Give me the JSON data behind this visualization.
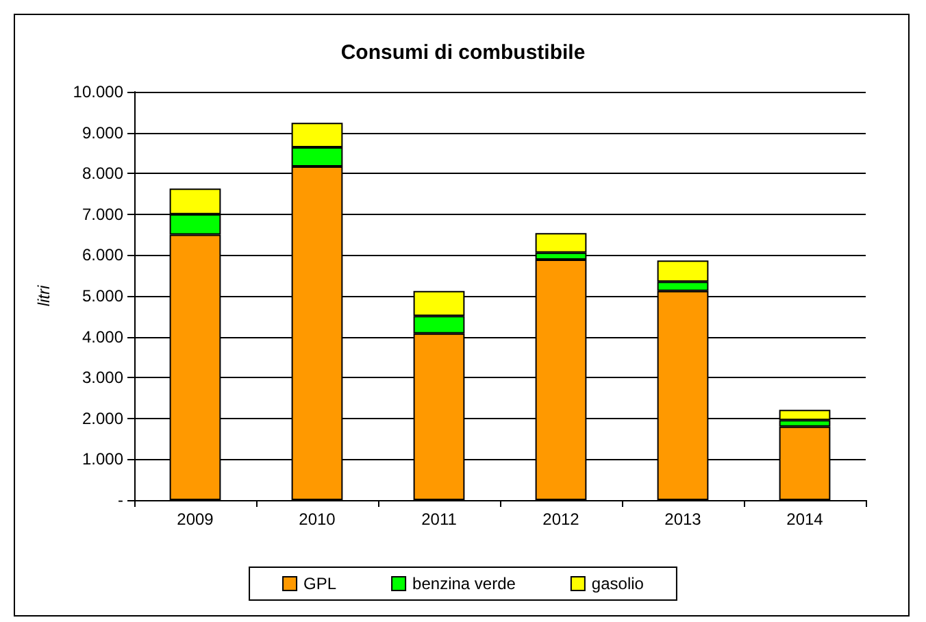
{
  "chart_data": {
    "type": "bar",
    "title": "Consumi di combustibile",
    "ylabel": "litri",
    "stacked": true,
    "categories": [
      "2009",
      "2010",
      "2011",
      "2012",
      "2013",
      "2014"
    ],
    "series": [
      {
        "name": "GPL",
        "color": "#ff9900",
        "values": [
          6500,
          8170,
          4080,
          5890,
          5120,
          1800
        ]
      },
      {
        "name": "benzina verde",
        "color": "#00ff00",
        "values": [
          500,
          470,
          430,
          170,
          230,
          160
        ]
      },
      {
        "name": "gasolio",
        "color": "#ffff00",
        "values": [
          630,
          600,
          610,
          480,
          520,
          250
        ]
      }
    ],
    "ylim": [
      0,
      10000
    ],
    "yticks": [
      {
        "value": 0,
        "label": "-"
      },
      {
        "value": 1000,
        "label": "1.000"
      },
      {
        "value": 2000,
        "label": "2.000"
      },
      {
        "value": 3000,
        "label": "3.000"
      },
      {
        "value": 4000,
        "label": "4.000"
      },
      {
        "value": 5000,
        "label": "5.000"
      },
      {
        "value": 6000,
        "label": "6.000"
      },
      {
        "value": 7000,
        "label": "7.000"
      },
      {
        "value": 8000,
        "label": "8.000"
      },
      {
        "value": 9000,
        "label": "9.000"
      },
      {
        "value": 10000,
        "label": "10.000"
      }
    ],
    "grid": "y",
    "legend": "bottom"
  }
}
